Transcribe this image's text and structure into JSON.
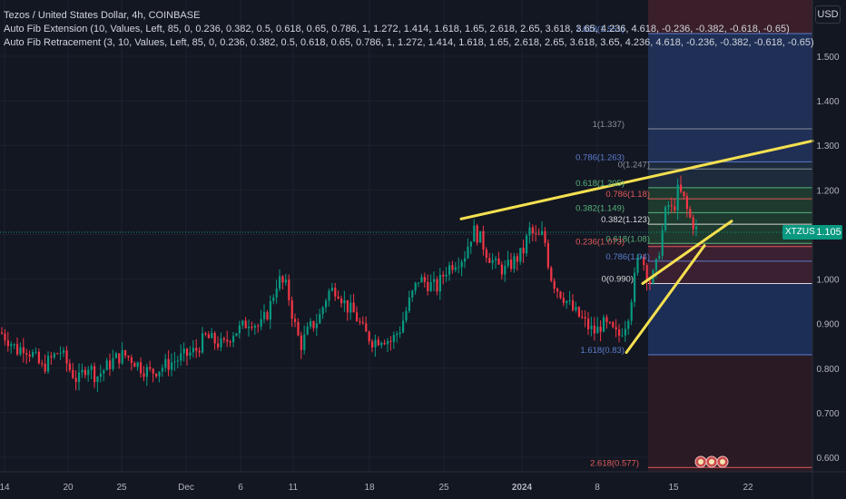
{
  "legend": {
    "title": "Tezos / United States Dollar, 4h, COINBASE",
    "indicator1": "Auto Fib Extension (10, Values, Left, 85, 0, 0.236, 0.382, 0.5, 0.618, 0.65, 0.786, 1, 1.272, 1.414, 1.618, 1.65, 2.618, 2.65, 3.618, 3.65, 4.236, 4.618, -0.236, -0.382, -0.618, -0.65)",
    "indicator2": "Auto Fib Retracement (3, 10, Values, Left, 85, 0, 0.236, 0.382, 0.5, 0.618, 0.65, 0.786, 1, 1.272, 1.414, 1.618, 1.65, 2.618, 2.65, 3.618, 3.65, 4.236, 4.618, -0.236, -0.382, -0.618, -0.65)"
  },
  "currency": "USD",
  "current_price": "1.105",
  "symbol": "XTZUSD",
  "colors": {
    "background": "#131722",
    "up": "#089981",
    "down": "#f23645",
    "trendline": "#f5e050",
    "grid": "#1e222d"
  },
  "chart_data": {
    "type": "candlestick",
    "title": "Tezos / United States Dollar, 4h, COINBASE",
    "y_axis": {
      "label": "USD",
      "ylim": [
        0.555,
        1.61
      ],
      "ticks": [
        "1.500",
        "1.400",
        "1.300",
        "1.200",
        "1.100",
        "1.000",
        "0.900",
        "0.800",
        "0.700",
        "0.600"
      ]
    },
    "x_axis": {
      "ticks": [
        "14",
        "20",
        "25",
        "Dec",
        "6",
        "11",
        "18",
        "25",
        "2024",
        "8",
        "15",
        "22"
      ]
    },
    "close_path": [
      [
        0,
        0.88
      ],
      [
        10,
        0.86
      ],
      [
        18,
        0.84
      ],
      [
        25,
        0.85
      ],
      [
        35,
        0.83
      ],
      [
        45,
        0.8
      ],
      [
        55,
        0.82
      ],
      [
        65,
        0.84
      ],
      [
        75,
        0.8
      ],
      [
        85,
        0.77
      ],
      [
        95,
        0.81
      ],
      [
        105,
        0.78
      ],
      [
        115,
        0.8
      ],
      [
        125,
        0.82
      ],
      [
        135,
        0.83
      ],
      [
        145,
        0.82
      ],
      [
        155,
        0.8
      ],
      [
        165,
        0.79
      ],
      [
        175,
        0.8
      ],
      [
        185,
        0.81
      ],
      [
        195,
        0.82
      ],
      [
        205,
        0.83
      ],
      [
        215,
        0.84
      ],
      [
        225,
        0.87
      ],
      [
        235,
        0.86
      ],
      [
        245,
        0.85
      ],
      [
        255,
        0.88
      ],
      [
        265,
        0.89
      ],
      [
        275,
        0.91
      ],
      [
        285,
        0.89
      ],
      [
        295,
        0.93
      ],
      [
        305,
        1.0
      ],
      [
        315,
        0.98
      ],
      [
        322,
        0.91
      ],
      [
        330,
        0.85
      ],
      [
        340,
        0.89
      ],
      [
        350,
        0.91
      ],
      [
        360,
        0.97
      ],
      [
        370,
        0.98
      ],
      [
        380,
        0.94
      ],
      [
        390,
        0.92
      ],
      [
        400,
        0.88
      ],
      [
        410,
        0.86
      ],
      [
        420,
        0.87
      ],
      [
        430,
        0.86
      ],
      [
        440,
        0.89
      ],
      [
        450,
        0.95
      ],
      [
        460,
        1.0
      ],
      [
        470,
        0.99
      ],
      [
        480,
        0.98
      ],
      [
        490,
        1.02
      ],
      [
        500,
        1.04
      ],
      [
        510,
        1.05
      ],
      [
        520,
        1.11
      ],
      [
        528,
        1.09
      ],
      [
        535,
        1.06
      ],
      [
        545,
        1.03
      ],
      [
        555,
        1.02
      ],
      [
        565,
        1.04
      ],
      [
        575,
        1.06
      ],
      [
        582,
        1.11
      ],
      [
        590,
        1.09
      ],
      [
        598,
        1.1
      ],
      [
        605,
        1.01
      ],
      [
        612,
        0.98
      ],
      [
        620,
        0.96
      ],
      [
        630,
        0.93
      ],
      [
        640,
        0.91
      ],
      [
        648,
        0.89
      ],
      [
        655,
        0.88
      ],
      [
        662,
        0.9
      ],
      [
        670,
        0.89
      ],
      [
        680,
        0.87
      ],
      [
        690,
        0.91
      ],
      [
        698,
        1.0
      ],
      [
        704,
        1.07
      ],
      [
        710,
        1.02
      ],
      [
        716,
        0.99
      ],
      [
        722,
        1.03
      ],
      [
        728,
        1.1
      ],
      [
        734,
        1.17
      ],
      [
        740,
        1.15
      ],
      [
        746,
        1.2
      ],
      [
        752,
        1.18
      ],
      [
        758,
        1.14
      ],
      [
        764,
        1.12
      ],
      [
        768,
        1.1
      ]
    ],
    "volatile_index_ranges": "per-candle wicks derived from close path",
    "fib_levels_right": [
      {
        "label": "1.618(1.551)",
        "value": 1.551
      },
      {
        "label": "1(1.337)",
        "value": 1.337
      },
      {
        "label": "0.786(1.263)",
        "value": 1.263
      },
      {
        "label": "0(1.247)",
        "value": 1.247
      },
      {
        "label": "0.618(1.205)",
        "value": 1.205
      },
      {
        "label": "0.786(1.18)",
        "value": 1.18
      },
      {
        "label": "0.382(1.149)",
        "value": 1.149
      },
      {
        "label": "0.382(1.123)",
        "value": 1.123
      },
      {
        "label": "0.618(1.08)",
        "value": 1.08
      },
      {
        "label": "0.236(1.073)",
        "value": 1.073
      },
      {
        "label": "0.786(1.04)",
        "value": 1.04
      },
      {
        "label": "0(0.990)",
        "value": 0.99
      },
      {
        "label": "1.618(0.83)",
        "value": 0.83
      },
      {
        "label": "2.618(0.577)",
        "value": 0.577
      }
    ]
  }
}
